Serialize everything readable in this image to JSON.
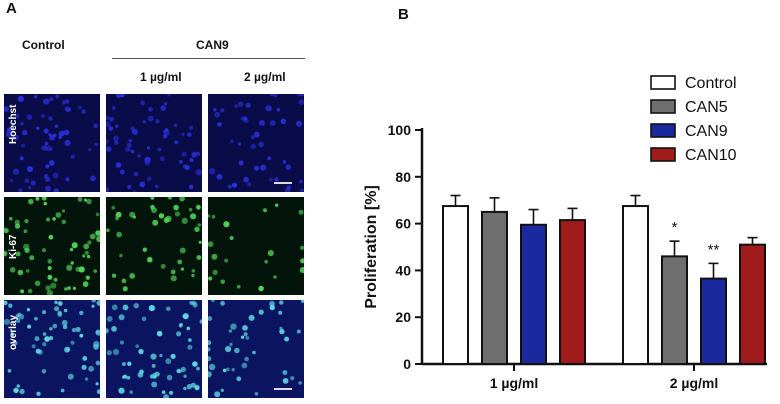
{
  "panel_a": {
    "letter": "A",
    "col_control": "Control",
    "group_label": "CAN9",
    "col_1": "1 µg/ml",
    "col_2": "2 µg/ml",
    "rows": [
      {
        "label": "Hoechst",
        "color": "#2a2fd8",
        "bg": "#0a0c4a"
      },
      {
        "label": "Ki-67",
        "color": "#4fd35a",
        "bg": "#03140a"
      },
      {
        "label": "overlay",
        "color": "#5fd7e0",
        "bg": "#0a1460"
      }
    ],
    "density": [
      [
        1.0,
        1.0,
        0.75
      ],
      [
        1.0,
        0.7,
        0.35
      ],
      [
        1.0,
        1.0,
        0.7
      ]
    ]
  },
  "panel_b": {
    "letter": "B"
  },
  "chart_data": {
    "type": "bar",
    "categories": [
      "1 µg/ml",
      "2 µg/ml"
    ],
    "ylabel": "Proliferation [%]",
    "xlabel": "",
    "ylim": [
      0,
      100
    ],
    "yticks": [
      0,
      20,
      40,
      60,
      80,
      100
    ],
    "legend_position": "top-right",
    "series": [
      {
        "name": "Control",
        "color": "#ffffff",
        "values": [
          67.5,
          67.5
        ],
        "errors": [
          4.5,
          4.5
        ],
        "significance": [
          "",
          ""
        ]
      },
      {
        "name": "CAN5",
        "color": "#6e6e6e",
        "values": [
          65,
          46
        ],
        "errors": [
          6,
          6.5
        ],
        "significance": [
          "",
          "*"
        ]
      },
      {
        "name": "CAN9",
        "color": "#1a2a9e",
        "values": [
          59.5,
          36.5
        ],
        "errors": [
          6.5,
          6.5
        ],
        "significance": [
          "",
          "**"
        ]
      },
      {
        "name": "CAN10",
        "color": "#a01c1c",
        "values": [
          61.5,
          51
        ],
        "errors": [
          5,
          3
        ],
        "significance": [
          "",
          ""
        ]
      }
    ]
  }
}
